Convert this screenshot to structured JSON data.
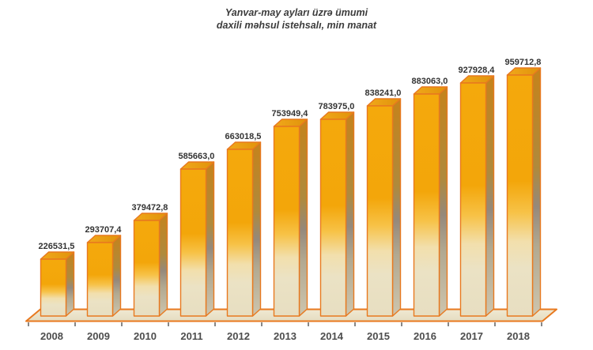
{
  "title": {
    "line1": "Yanvar-may ayları üzrə ümumi",
    "line2": "daxili məhsul istehsalı, min manat"
  },
  "chart_data": {
    "type": "bar",
    "title": "Yanvar-may ayları üzrə ümumi daxili məhsul istehsalı, min manat",
    "unit": "min manat",
    "categories": [
      "2008",
      "2009",
      "2010",
      "2011",
      "2012",
      "2013",
      "2014",
      "2015",
      "2016",
      "2017",
      "2018"
    ],
    "values": [
      226531.5,
      293707.4,
      379472.8,
      585663.0,
      663018.5,
      753949.4,
      783975.0,
      838241.0,
      883063.0,
      927928.4,
      959712.8
    ],
    "value_labels": [
      "226531,5",
      "293707,4",
      "379472,8",
      "585663,0",
      "663018,5",
      "753949,4",
      "783975,0",
      "838241,0",
      "883063,0",
      "927928,4",
      "959712,8"
    ],
    "xlabel": "",
    "ylabel": "",
    "ylim": [
      0,
      1000000
    ],
    "grid": false,
    "legend": false,
    "bar_style": "3d-column"
  },
  "colors": {
    "background": "#FFFFFF",
    "edge": "#E8791F",
    "front_gradient": [
      [
        0,
        "#F4A90C"
      ],
      [
        0.44,
        "#F3A60A"
      ],
      [
        0.57,
        "#F7C247"
      ],
      [
        0.69,
        "#F2DFAC"
      ],
      [
        0.8,
        "#EBE2C4"
      ],
      [
        1,
        "#E7DEC1"
      ]
    ],
    "side_gradient": [
      [
        0,
        "#C5831B"
      ],
      [
        0.4,
        "#AF8A3C"
      ],
      [
        0.56,
        "#95897B"
      ],
      [
        0.72,
        "#B2A991"
      ],
      [
        1,
        "#CDC5AE"
      ]
    ],
    "top_gradient": [
      [
        0,
        "#F1A81A"
      ],
      [
        1,
        "#E0930B"
      ]
    ],
    "floor_gradient": [
      [
        0,
        "#F0E9D2"
      ],
      [
        1,
        "#E5DCC1"
      ]
    ],
    "tick": "#5F5F5F",
    "value_label_text": "#333333",
    "year_label_text": "#4D4D4D",
    "title_text": "#3C3C3C"
  }
}
